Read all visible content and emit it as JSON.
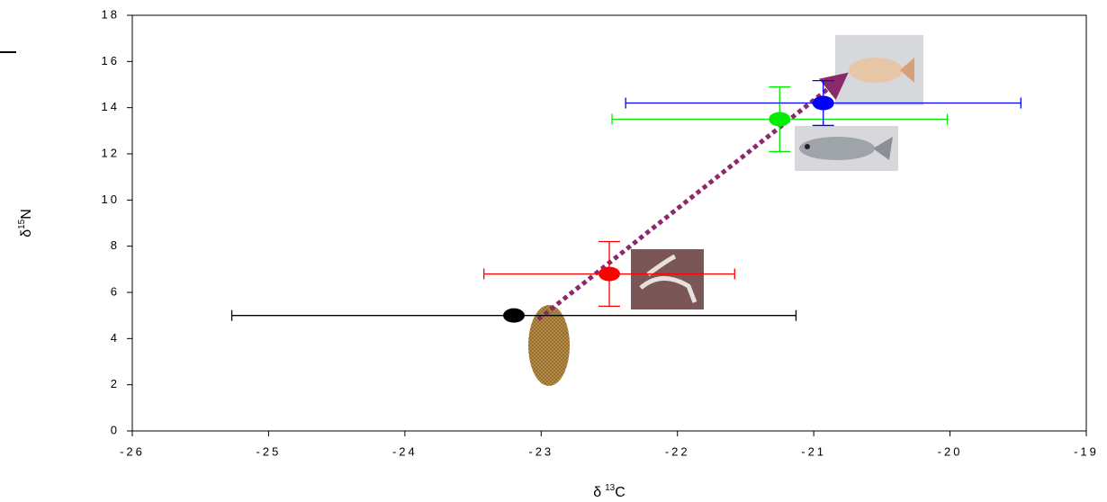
{
  "chart_data": {
    "type": "scatter",
    "xlabel": {
      "symbol": "δ",
      "sup": "13",
      "base": "C"
    },
    "ylabel": {
      "symbol": "δ",
      "sup": "15",
      "base": "N"
    },
    "xlim": [
      -26,
      -19
    ],
    "xticks": [
      -26,
      -25,
      -24,
      -23,
      -22,
      -21,
      -20,
      -19
    ],
    "ylim": [
      0,
      18
    ],
    "yticks": [
      0,
      2,
      4,
      6,
      8,
      10,
      12,
      14,
      16,
      18
    ],
    "series": [
      {
        "color": "#000000",
        "x": -23.2,
        "y": 5.0,
        "xerr": 2.07,
        "yerr": null
      },
      {
        "color": "#ff0000",
        "x": -22.5,
        "y": 6.8,
        "xerr": 0.92,
        "yerr": 1.4
      },
      {
        "color": "#00ee00",
        "x": -21.25,
        "y": 13.5,
        "xerr": 1.23,
        "yerr": 1.4
      },
      {
        "color": "#0000ff",
        "x": -20.93,
        "y": 14.2,
        "xerr": 1.45,
        "yerr": 0.97
      }
    ]
  }
}
